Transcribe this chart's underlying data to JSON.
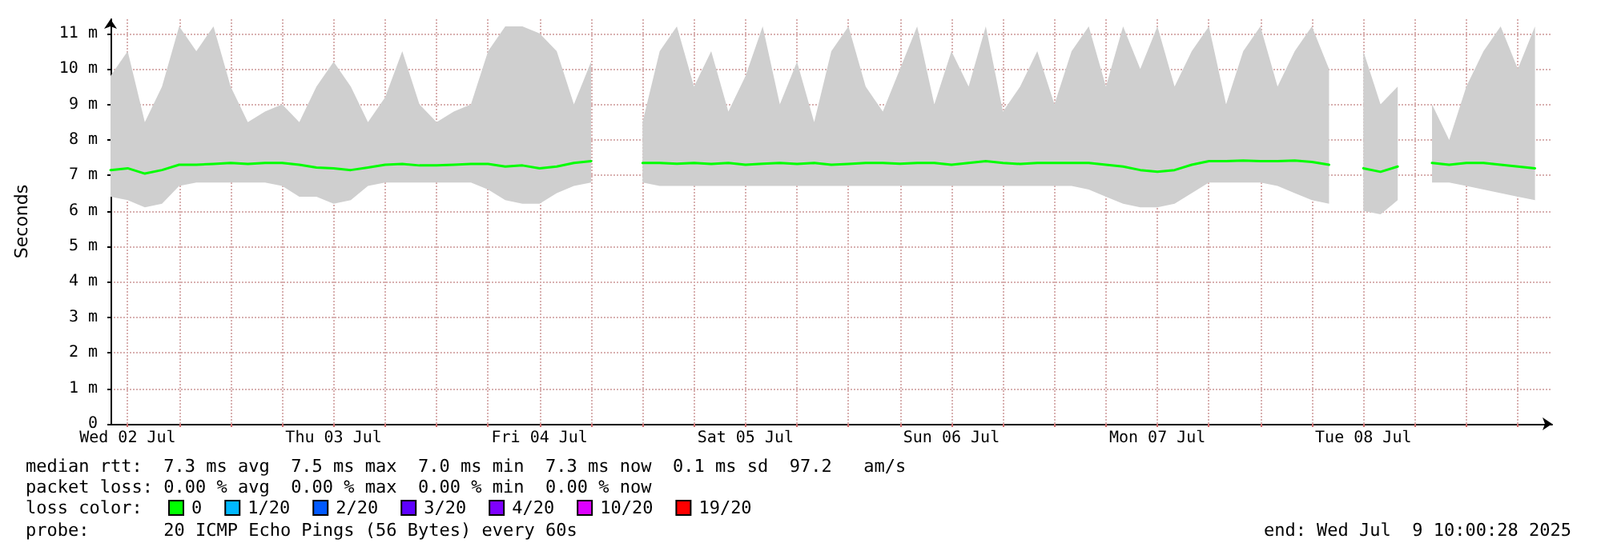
{
  "chart_data": {
    "type": "line",
    "ylabel": "Seconds",
    "xlim": [
      "2025-07-02T10:00",
      "2025-07-09T10:00"
    ],
    "xticks": [
      {
        "value": "2025-07-02T12:00",
        "label": "Wed 02 Jul"
      },
      {
        "value": "2025-07-02T18:00",
        "label": null
      },
      {
        "value": "2025-07-03T00:00",
        "label": null
      },
      {
        "value": "2025-07-03T06:00",
        "label": null
      },
      {
        "value": "2025-07-03T12:00",
        "label": "Thu 03 Jul"
      },
      {
        "value": "2025-07-03T18:00",
        "label": null
      },
      {
        "value": "2025-07-04T00:00",
        "label": null
      },
      {
        "value": "2025-07-04T06:00",
        "label": null
      },
      {
        "value": "2025-07-04T12:00",
        "label": "Fri 04 Jul"
      },
      {
        "value": "2025-07-04T18:00",
        "label": null
      },
      {
        "value": "2025-07-05T00:00",
        "label": null
      },
      {
        "value": "2025-07-05T06:00",
        "label": null
      },
      {
        "value": "2025-07-05T12:00",
        "label": "Sat 05 Jul"
      },
      {
        "value": "2025-07-05T18:00",
        "label": null
      },
      {
        "value": "2025-07-06T00:00",
        "label": null
      },
      {
        "value": "2025-07-06T06:00",
        "label": null
      },
      {
        "value": "2025-07-06T12:00",
        "label": "Sun 06 Jul"
      },
      {
        "value": "2025-07-06T18:00",
        "label": null
      },
      {
        "value": "2025-07-07T00:00",
        "label": null
      },
      {
        "value": "2025-07-07T06:00",
        "label": null
      },
      {
        "value": "2025-07-07T12:00",
        "label": "Mon 07 Jul"
      },
      {
        "value": "2025-07-07T18:00",
        "label": null
      },
      {
        "value": "2025-07-08T00:00",
        "label": null
      },
      {
        "value": "2025-07-08T06:00",
        "label": null
      },
      {
        "value": "2025-07-08T12:00",
        "label": "Tue 08 Jul"
      },
      {
        "value": "2025-07-08T18:00",
        "label": null
      },
      {
        "value": "2025-07-09T00:00",
        "label": null
      },
      {
        "value": "2025-07-09T06:00",
        "label": null
      }
    ],
    "ylim": [
      0,
      11.4
    ],
    "yticks": [
      0,
      {
        "value": 1,
        "label": "1 m"
      },
      {
        "value": 2,
        "label": "2 m"
      },
      {
        "value": 3,
        "label": "3 m"
      },
      {
        "value": 4,
        "label": "4 m"
      },
      {
        "value": 5,
        "label": "5 m"
      },
      {
        "value": 6,
        "label": "6 m"
      },
      {
        "value": 7,
        "label": "7 m"
      },
      {
        "value": 8,
        "label": "8 m"
      },
      {
        "value": 9,
        "label": "9 m"
      },
      {
        "value": 10,
        "label": "10 m"
      },
      {
        "value": 11,
        "label": "11 m"
      }
    ],
    "x": [
      "2025-07-02T10:00",
      "2025-07-02T12:00",
      "2025-07-02T14:00",
      "2025-07-02T16:00",
      "2025-07-02T18:00",
      "2025-07-02T20:00",
      "2025-07-02T22:00",
      "2025-07-03T00:00",
      "2025-07-03T02:00",
      "2025-07-03T04:00",
      "2025-07-03T06:00",
      "2025-07-03T08:00",
      "2025-07-03T10:00",
      "2025-07-03T12:00",
      "2025-07-03T14:00",
      "2025-07-03T16:00",
      "2025-07-03T18:00",
      "2025-07-03T20:00",
      "2025-07-03T22:00",
      "2025-07-04T00:00",
      "2025-07-04T02:00",
      "2025-07-04T04:00",
      "2025-07-04T06:00",
      "2025-07-04T08:00",
      "2025-07-04T10:00",
      "2025-07-04T12:00",
      "2025-07-04T14:00",
      "2025-07-04T16:00",
      "2025-07-04T18:00",
      "2025-07-04T20:00",
      "2025-07-04T22:00",
      "2025-07-05T00:00",
      "2025-07-05T02:00",
      "2025-07-05T04:00",
      "2025-07-05T06:00",
      "2025-07-05T08:00",
      "2025-07-05T10:00",
      "2025-07-05T12:00",
      "2025-07-05T14:00",
      "2025-07-05T16:00",
      "2025-07-05T18:00",
      "2025-07-05T20:00",
      "2025-07-05T22:00",
      "2025-07-06T00:00",
      "2025-07-06T02:00",
      "2025-07-06T04:00",
      "2025-07-06T06:00",
      "2025-07-06T08:00",
      "2025-07-06T10:00",
      "2025-07-06T12:00",
      "2025-07-06T14:00",
      "2025-07-06T16:00",
      "2025-07-06T18:00",
      "2025-07-06T20:00",
      "2025-07-06T22:00",
      "2025-07-07T00:00",
      "2025-07-07T02:00",
      "2025-07-07T04:00",
      "2025-07-07T06:00",
      "2025-07-07T08:00",
      "2025-07-07T10:00",
      "2025-07-07T12:00",
      "2025-07-07T14:00",
      "2025-07-07T16:00",
      "2025-07-07T18:00",
      "2025-07-07T20:00",
      "2025-07-07T22:00",
      "2025-07-08T00:00",
      "2025-07-08T02:00",
      "2025-07-08T04:00",
      "2025-07-08T06:00",
      "2025-07-08T08:00",
      "2025-07-08T10:00",
      "2025-07-08T12:00",
      "2025-07-08T14:00",
      "2025-07-08T16:00",
      "2025-07-08T18:00",
      "2025-07-08T20:00",
      "2025-07-08T22:00",
      "2025-07-09T00:00",
      "2025-07-09T02:00",
      "2025-07-09T04:00",
      "2025-07-09T06:00",
      "2025-07-09T08:00"
    ],
    "series": [
      {
        "name": "0",
        "color": "#00ff00",
        "values": [
          7.15,
          7.2,
          7.05,
          7.15,
          7.3,
          7.3,
          7.32,
          7.35,
          7.32,
          7.35,
          7.35,
          7.3,
          7.22,
          7.2,
          7.15,
          7.22,
          7.3,
          7.32,
          7.28,
          7.28,
          7.3,
          7.32,
          7.32,
          7.25,
          7.28,
          7.2,
          7.25,
          7.35,
          7.4,
          null,
          null,
          7.35,
          7.35,
          7.33,
          7.35,
          7.32,
          7.35,
          7.3,
          7.33,
          7.35,
          7.32,
          7.35,
          7.3,
          7.32,
          7.35,
          7.35,
          7.33,
          7.35,
          7.35,
          7.3,
          7.35,
          7.4,
          7.35,
          7.32,
          7.35,
          7.35,
          7.35,
          7.35,
          7.3,
          7.25,
          7.15,
          7.1,
          7.15,
          7.3,
          7.4,
          7.4,
          7.42,
          7.4,
          7.4,
          7.42,
          7.38,
          7.3,
          null,
          7.2,
          7.1,
          7.25,
          null,
          7.35,
          7.3,
          7.35,
          7.35,
          7.3,
          7.25,
          7.2
        ],
        "lower": [
          6.4,
          6.3,
          6.1,
          6.2,
          6.7,
          6.8,
          6.8,
          6.8,
          6.8,
          6.8,
          6.7,
          6.4,
          6.4,
          6.2,
          6.3,
          6.7,
          6.8,
          6.8,
          6.8,
          6.8,
          6.8,
          6.8,
          6.6,
          6.3,
          6.2,
          6.2,
          6.5,
          6.7,
          6.8,
          null,
          null,
          6.8,
          6.7,
          6.7,
          6.7,
          6.7,
          6.7,
          6.7,
          6.7,
          6.7,
          6.7,
          6.7,
          6.7,
          6.7,
          6.7,
          6.7,
          6.7,
          6.7,
          6.7,
          6.7,
          6.7,
          6.7,
          6.7,
          6.7,
          6.7,
          6.7,
          6.7,
          6.6,
          6.4,
          6.2,
          6.1,
          6.1,
          6.2,
          6.5,
          6.8,
          6.8,
          6.8,
          6.8,
          6.7,
          6.5,
          6.3,
          6.2,
          null,
          6.0,
          5.9,
          6.3,
          null,
          6.8,
          6.8,
          6.7,
          6.6,
          6.5,
          6.4,
          6.3
        ],
        "upper": [
          9.8,
          10.5,
          8.5,
          9.5,
          11.2,
          10.5,
          11.2,
          9.5,
          8.5,
          8.8,
          9.0,
          8.5,
          9.5,
          10.2,
          9.5,
          8.5,
          9.2,
          10.5,
          9.0,
          8.5,
          8.8,
          9.0,
          10.5,
          11.2,
          11.2,
          11.0,
          10.5,
          9.0,
          10.2,
          null,
          null,
          8.5,
          10.5,
          11.2,
          9.5,
          10.5,
          8.8,
          9.8,
          11.2,
          9.0,
          10.2,
          8.5,
          10.5,
          11.2,
          9.5,
          8.8,
          10.0,
          11.2,
          9.0,
          10.5,
          9.5,
          11.2,
          8.8,
          9.5,
          10.5,
          9.0,
          10.5,
          11.2,
          9.5,
          11.2,
          10.0,
          11.2,
          9.5,
          10.5,
          11.2,
          9.0,
          10.5,
          11.2,
          9.5,
          10.5,
          11.2,
          10.0,
          null,
          10.5,
          9.0,
          9.5,
          null,
          9.0,
          8.0,
          9.5,
          10.5,
          11.2,
          10.0,
          11.2
        ]
      },
      {
        "name": "1/20",
        "color": "#00b8ff",
        "values": [
          null,
          null,
          null,
          null,
          null,
          null,
          null,
          null,
          null,
          null,
          null,
          null,
          null,
          null,
          null,
          null,
          null,
          null,
          null,
          null,
          null,
          null,
          null,
          null,
          null,
          null,
          null,
          null,
          null,
          null,
          null,
          null,
          null,
          null,
          null,
          null,
          null,
          null,
          null,
          null,
          null,
          null,
          null,
          null,
          null,
          null,
          null,
          null,
          null,
          null,
          null,
          null,
          null,
          null,
          null,
          null,
          null,
          null,
          null,
          null,
          null,
          null,
          null,
          null,
          null,
          null,
          null,
          null,
          null,
          null,
          null,
          null,
          null,
          null,
          null,
          null,
          null,
          null,
          null,
          null,
          null,
          null,
          null,
          null
        ]
      },
      {
        "name": "2/20",
        "color": "#0059ff",
        "values": [
          null,
          null,
          null,
          null,
          null,
          null,
          null,
          null,
          null,
          null,
          null,
          null,
          null,
          null,
          null,
          null,
          null,
          null,
          null,
          null,
          null,
          null,
          null,
          null,
          null,
          null,
          null,
          null,
          null,
          null,
          null,
          null,
          null,
          null,
          null,
          null,
          null,
          null,
          null,
          null,
          null,
          null,
          null,
          null,
          null,
          null,
          null,
          null,
          null,
          null,
          null,
          null,
          null,
          null,
          null,
          null,
          null,
          null,
          null,
          null,
          null,
          null,
          null,
          null,
          null,
          null,
          null,
          null,
          null,
          null,
          null,
          null,
          null,
          null,
          null,
          null,
          null,
          null,
          null,
          null,
          null,
          null,
          null,
          null
        ]
      },
      {
        "name": "3/20",
        "color": "#5e00ff",
        "values": [
          null,
          null,
          null,
          null,
          null,
          null,
          null,
          null,
          null,
          null,
          null,
          null,
          null,
          null,
          null,
          null,
          null,
          null,
          null,
          null,
          null,
          null,
          null,
          null,
          null,
          null,
          null,
          null,
          null,
          null,
          null,
          null,
          null,
          null,
          null,
          null,
          null,
          null,
          null,
          null,
          null,
          null,
          null,
          null,
          null,
          null,
          null,
          null,
          null,
          null,
          null,
          null,
          null,
          null,
          null,
          null,
          null,
          null,
          null,
          null,
          null,
          null,
          null,
          null,
          null,
          null,
          null,
          null,
          null,
          null,
          null,
          null,
          null,
          null,
          null,
          null,
          null,
          null,
          null,
          null,
          null,
          null,
          null,
          null
        ]
      },
      {
        "name": "4/20",
        "color": "#7e00ff",
        "values": [
          null,
          null,
          null,
          null,
          null,
          null,
          null,
          null,
          null,
          null,
          null,
          null,
          null,
          null,
          null,
          null,
          null,
          null,
          null,
          null,
          null,
          null,
          null,
          null,
          null,
          null,
          null,
          null,
          null,
          null,
          null,
          null,
          null,
          null,
          null,
          null,
          null,
          null,
          null,
          null,
          null,
          null,
          null,
          null,
          null,
          null,
          null,
          null,
          null,
          null,
          null,
          null,
          null,
          null,
          null,
          null,
          null,
          null,
          null,
          null,
          null,
          null,
          null,
          null,
          null,
          null,
          null,
          null,
          null,
          null,
          null,
          null,
          null,
          null,
          null,
          null,
          null,
          null,
          null,
          null,
          null,
          null,
          null,
          null
        ]
      },
      {
        "name": "10/20",
        "color": "#dd00ff",
        "values": [
          null,
          null,
          null,
          null,
          null,
          null,
          null,
          null,
          null,
          null,
          null,
          null,
          null,
          null,
          null,
          null,
          null,
          null,
          null,
          null,
          null,
          null,
          null,
          null,
          null,
          null,
          null,
          null,
          null,
          null,
          null,
          null,
          null,
          null,
          null,
          null,
          null,
          null,
          null,
          null,
          null,
          null,
          null,
          null,
          null,
          null,
          null,
          null,
          null,
          null,
          null,
          null,
          null,
          null,
          null,
          null,
          null,
          null,
          null,
          null,
          null,
          null,
          null,
          null,
          null,
          null,
          null,
          null,
          null,
          null,
          null,
          null,
          null,
          null,
          null,
          null,
          null,
          null,
          null,
          null,
          null,
          null,
          null,
          null
        ]
      },
      {
        "name": "19/20",
        "color": "#ff0000",
        "values": [
          null,
          null,
          null,
          null,
          null,
          null,
          null,
          null,
          null,
          null,
          null,
          null,
          null,
          null,
          null,
          null,
          null,
          null,
          null,
          null,
          null,
          null,
          null,
          null,
          null,
          null,
          null,
          null,
          null,
          null,
          null,
          null,
          null,
          null,
          null,
          null,
          null,
          null,
          null,
          null,
          null,
          null,
          null,
          null,
          null,
          null,
          null,
          null,
          null,
          null,
          null,
          null,
          null,
          null,
          null,
          null,
          null,
          null,
          null,
          null,
          null,
          null,
          null,
          null,
          null,
          null,
          null,
          null,
          null,
          null,
          null,
          null,
          null,
          null,
          null,
          null,
          null,
          null,
          null,
          null,
          null,
          null,
          null,
          null
        ]
      }
    ],
    "legend": "bottom",
    "legend_title": "loss color:",
    "grid": true,
    "marker": "none",
    "line_style": "solid",
    "annotations": [
      "median rtt:  7.3 ms avg  7.5 ms max  7.0 ms min  7.3 ms now  0.1 ms sd  97.2   am/s",
      "packet loss: 0.00 % avg  0.00 % max  0.00 % min  0.00 % now",
      "probe:       20 ICMP Echo Pings (56 Bytes) every 60s",
      "end: Wed Jul  9 10:00:28 2025"
    ]
  }
}
